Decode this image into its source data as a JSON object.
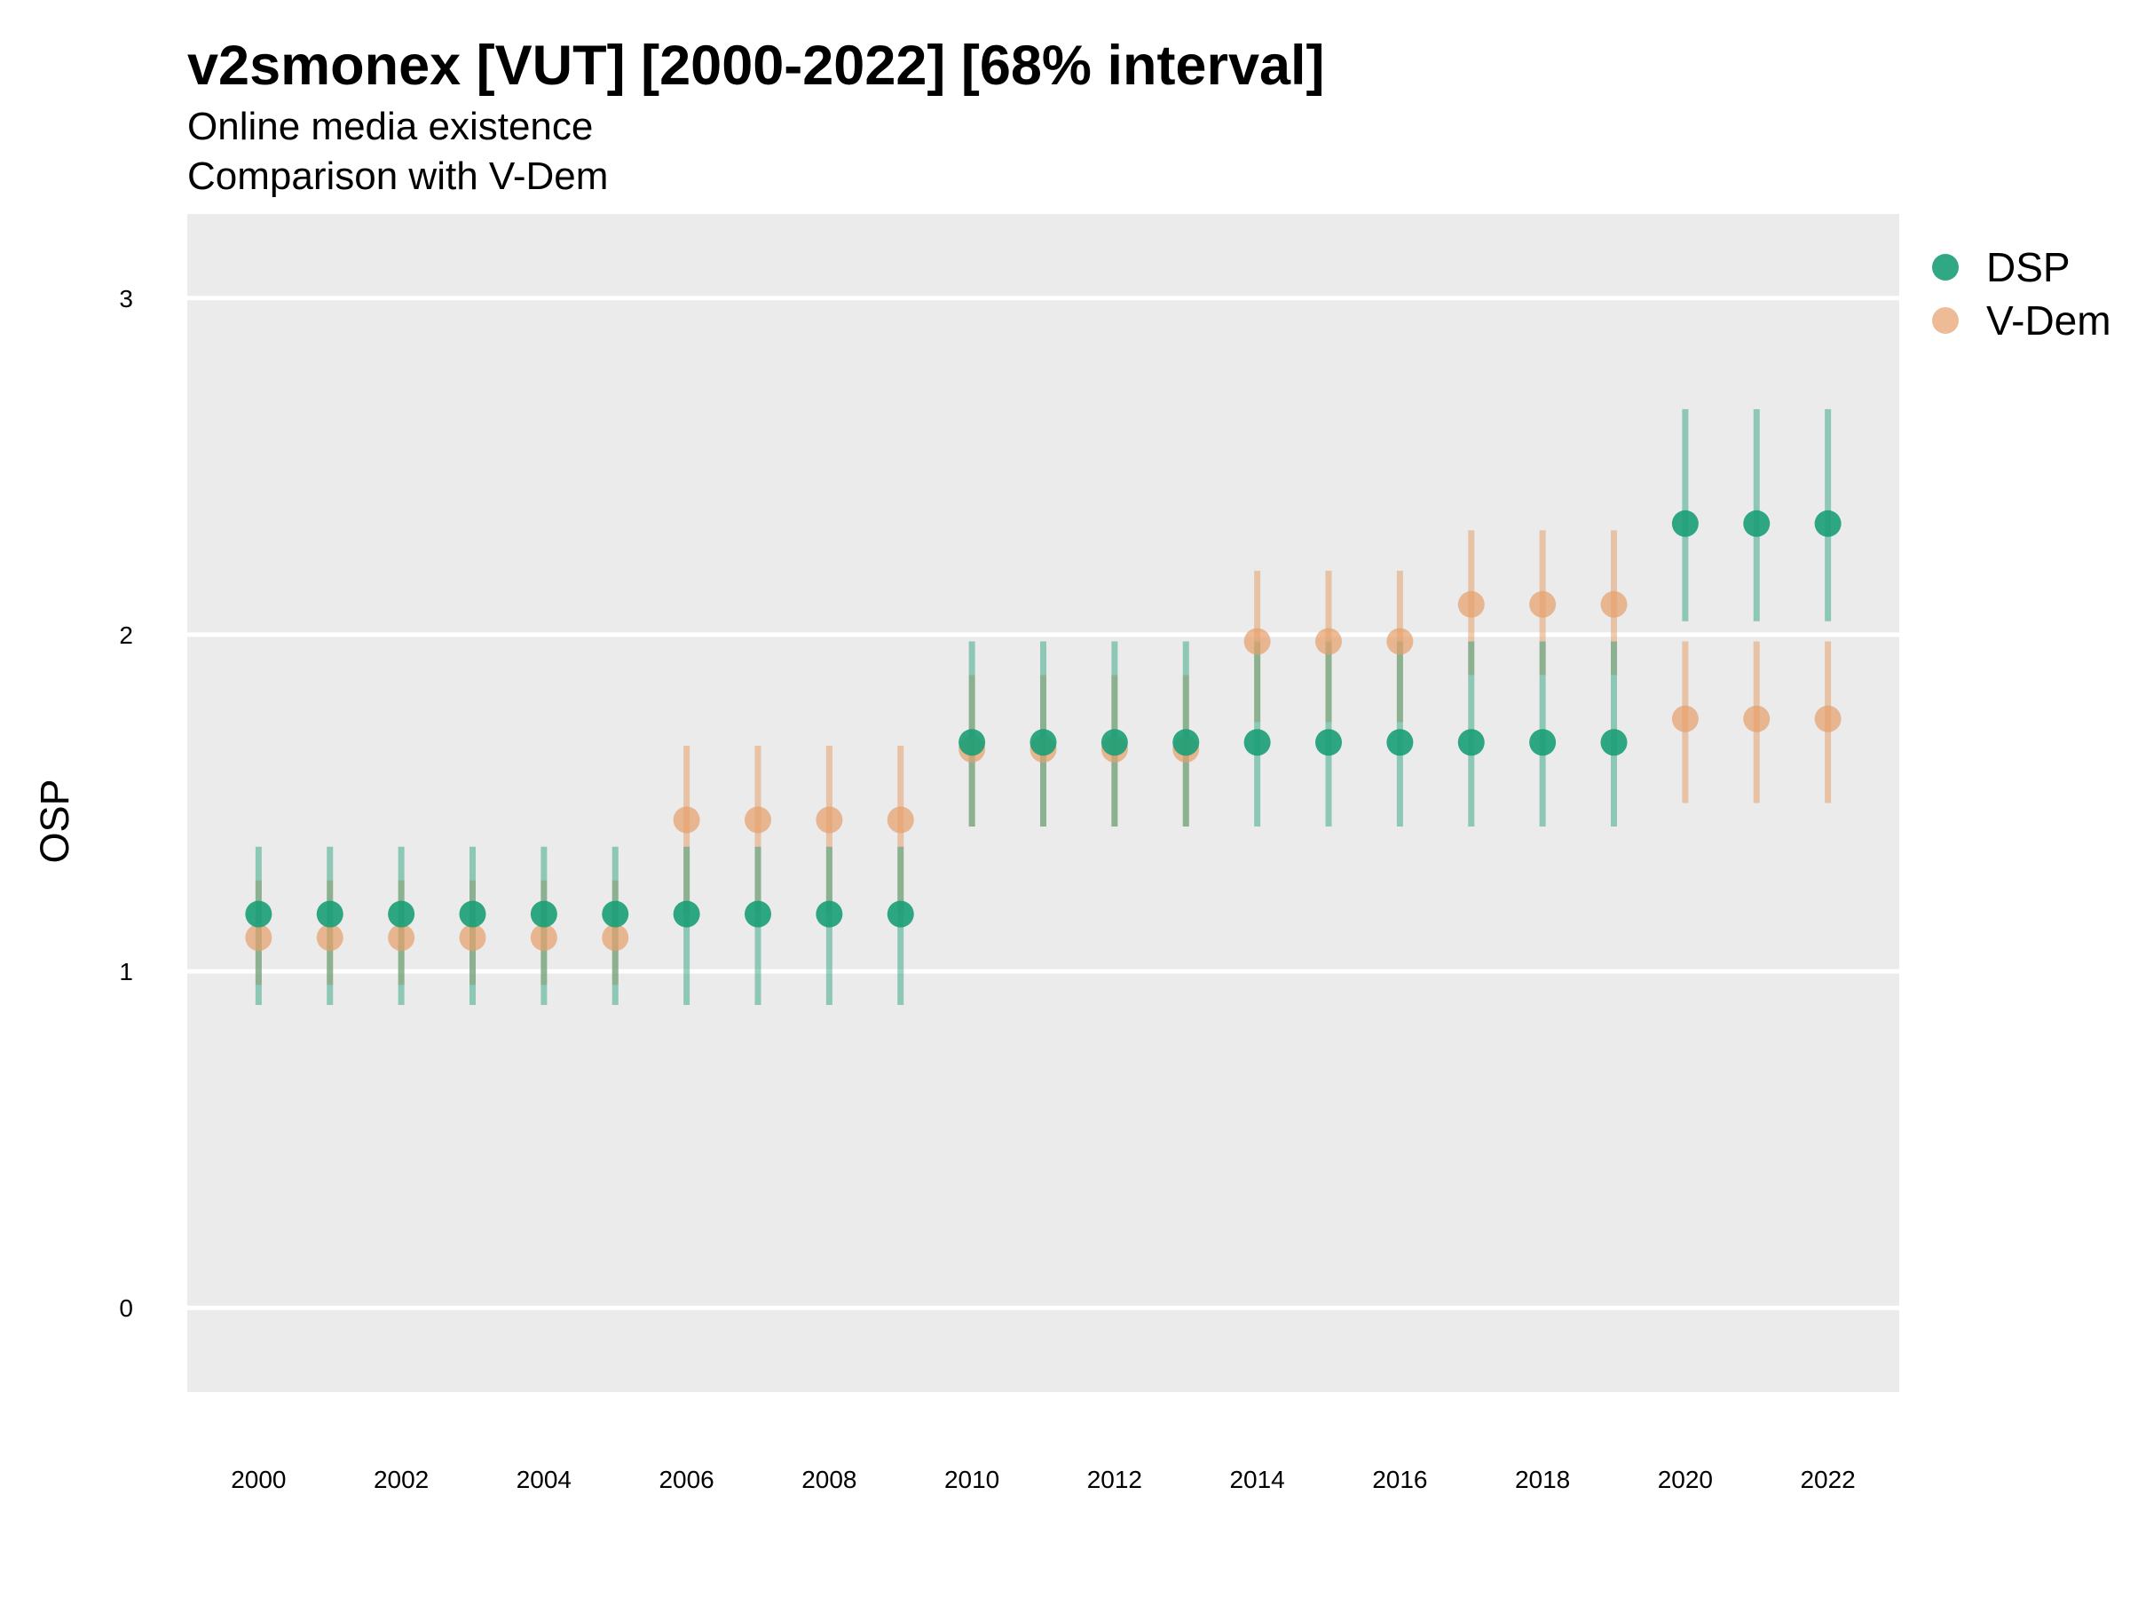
{
  "chart_data": {
    "type": "scatter",
    "title": "v2smonex [VUT] [2000-2022] [68% interval]",
    "subtitle": "Online media existence",
    "subtitle2": "Comparison with V-Dem",
    "ylabel": "OSP",
    "xlabel": "",
    "ylim": [
      -0.25,
      3.25
    ],
    "xlim": [
      1999,
      2023
    ],
    "y_ticks": [
      "0",
      "1",
      "2",
      "3"
    ],
    "x_ticks": [
      "2000",
      "2002",
      "2004",
      "2006",
      "2008",
      "2010",
      "2012",
      "2014",
      "2016",
      "2018",
      "2020",
      "2022"
    ],
    "grid": true,
    "legend_position": "right",
    "colors": {
      "DSP": "#1b9e77",
      "V-Dem": "#e6a06b",
      "panel": "#ebebeb",
      "grid": "#ffffff"
    },
    "x": [
      2000,
      2001,
      2002,
      2003,
      2004,
      2005,
      2006,
      2007,
      2008,
      2009,
      2010,
      2011,
      2012,
      2013,
      2014,
      2015,
      2016,
      2017,
      2018,
      2019,
      2020,
      2021,
      2022
    ],
    "series": [
      {
        "name": "DSP",
        "values": [
          1.17,
          1.17,
          1.17,
          1.17,
          1.17,
          1.17,
          1.17,
          1.17,
          1.17,
          1.17,
          1.68,
          1.68,
          1.68,
          1.68,
          1.68,
          1.68,
          1.68,
          1.68,
          1.68,
          1.68,
          2.33,
          2.33,
          2.33
        ],
        "lower": [
          0.9,
          0.9,
          0.9,
          0.9,
          0.9,
          0.9,
          0.9,
          0.9,
          0.9,
          0.9,
          1.43,
          1.43,
          1.43,
          1.43,
          1.43,
          1.43,
          1.43,
          1.43,
          1.43,
          1.43,
          2.04,
          2.04,
          2.04
        ],
        "upper": [
          1.37,
          1.37,
          1.37,
          1.37,
          1.37,
          1.37,
          1.37,
          1.37,
          1.37,
          1.37,
          1.98,
          1.98,
          1.98,
          1.98,
          1.98,
          1.98,
          1.98,
          1.98,
          1.98,
          1.98,
          2.67,
          2.67,
          2.67
        ]
      },
      {
        "name": "V-Dem",
        "values": [
          1.1,
          1.1,
          1.1,
          1.1,
          1.1,
          1.1,
          1.45,
          1.45,
          1.45,
          1.45,
          1.66,
          1.66,
          1.66,
          1.66,
          1.98,
          1.98,
          1.98,
          2.09,
          2.09,
          2.09,
          1.75,
          1.75,
          1.75
        ],
        "lower": [
          0.96,
          0.96,
          0.96,
          0.96,
          0.96,
          0.96,
          1.17,
          1.17,
          1.17,
          1.17,
          1.43,
          1.43,
          1.43,
          1.43,
          1.74,
          1.74,
          1.74,
          1.88,
          1.88,
          1.88,
          1.5,
          1.5,
          1.5
        ],
        "upper": [
          1.27,
          1.27,
          1.27,
          1.27,
          1.27,
          1.27,
          1.67,
          1.67,
          1.67,
          1.67,
          1.88,
          1.88,
          1.88,
          1.88,
          2.19,
          2.19,
          2.19,
          2.31,
          2.31,
          2.31,
          1.98,
          1.98,
          1.98
        ]
      }
    ]
  }
}
